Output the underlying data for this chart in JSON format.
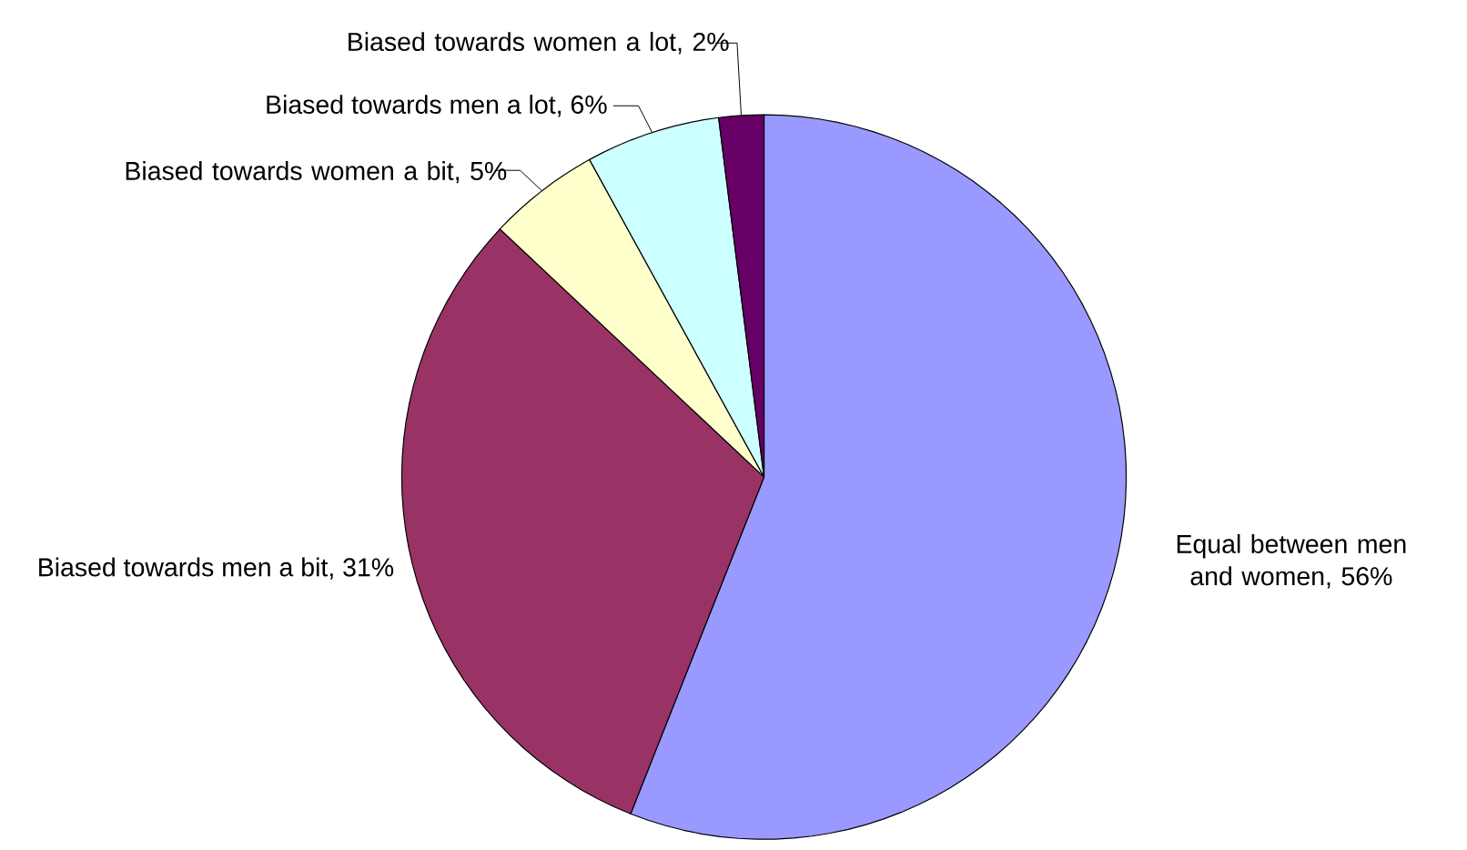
{
  "chart_data": {
    "type": "pie",
    "categories": [
      "Equal between men and women, 56%",
      "Biased towards men a bit, 31%",
      "Biased towards women a bit, 5%",
      "Biased towards men a lot, 6%",
      "Biased towards women a lot, 2%"
    ],
    "values": [
      56,
      31,
      5,
      6,
      2
    ],
    "colors": [
      "#9999ff",
      "#993366",
      "#ffffcc",
      "#ccffff",
      "#660066"
    ]
  }
}
